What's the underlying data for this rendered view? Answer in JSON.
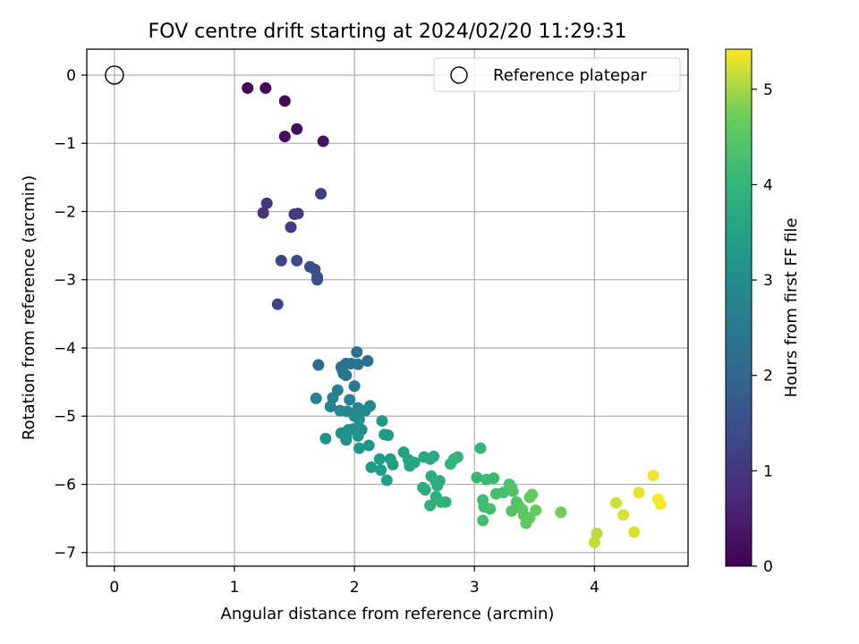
{
  "chart_data": {
    "type": "scatter",
    "title": "FOV centre drift starting at 2024/02/20 11:29:31",
    "xlabel": "Angular distance from reference (arcmin)",
    "ylabel": "Rotation from reference (arcmin)",
    "xlim": [
      -0.23,
      4.78
    ],
    "ylim": [
      -7.2,
      0.38
    ],
    "xticks": [
      0,
      1,
      2,
      3,
      4
    ],
    "yticks": [
      0,
      -1,
      -2,
      -3,
      -4,
      -5,
      -6,
      -7
    ],
    "grid": true,
    "legend": {
      "placement": "top-right",
      "entries": [
        "Reference platepar"
      ]
    },
    "reference_point": {
      "x": 0,
      "y": 0
    },
    "colorbar": {
      "label": "Hours from first FF file",
      "range": [
        0,
        5.42
      ],
      "ticks": [
        0,
        1,
        2,
        3,
        4,
        5
      ],
      "colormap": "viridis"
    },
    "points": [
      {
        "x": 1.11,
        "y": -0.19,
        "t": 0.05
      },
      {
        "x": 1.26,
        "y": -0.19,
        "t": 0.1
      },
      {
        "x": 1.42,
        "y": -0.38,
        "t": 0.15
      },
      {
        "x": 1.42,
        "y": -0.9,
        "t": 0.2
      },
      {
        "x": 1.52,
        "y": -0.79,
        "t": 0.25
      },
      {
        "x": 1.74,
        "y": -0.97,
        "t": 0.3
      },
      {
        "x": 1.24,
        "y": -2.02,
        "t": 0.9
      },
      {
        "x": 1.27,
        "y": -1.88,
        "t": 0.95
      },
      {
        "x": 1.5,
        "y": -2.04,
        "t": 1.0
      },
      {
        "x": 1.53,
        "y": -2.03,
        "t": 1.05
      },
      {
        "x": 1.47,
        "y": -2.23,
        "t": 1.05
      },
      {
        "x": 1.72,
        "y": -1.74,
        "t": 1.1
      },
      {
        "x": 1.39,
        "y": -2.72,
        "t": 1.3
      },
      {
        "x": 1.52,
        "y": -2.72,
        "t": 1.35
      },
      {
        "x": 1.63,
        "y": -2.81,
        "t": 1.4
      },
      {
        "x": 1.67,
        "y": -2.85,
        "t": 1.45
      },
      {
        "x": 1.69,
        "y": -2.96,
        "t": 1.5
      },
      {
        "x": 1.69,
        "y": -3.0,
        "t": 1.5
      },
      {
        "x": 1.36,
        "y": -3.36,
        "t": 1.3
      },
      {
        "x": 1.7,
        "y": -4.25,
        "t": 2.1
      },
      {
        "x": 2.02,
        "y": -4.06,
        "t": 2.2
      },
      {
        "x": 2.11,
        "y": -4.19,
        "t": 2.2
      },
      {
        "x": 1.89,
        "y": -4.28,
        "t": 2.3
      },
      {
        "x": 1.93,
        "y": -4.23,
        "t": 2.3
      },
      {
        "x": 1.97,
        "y": -4.23,
        "t": 2.3
      },
      {
        "x": 2.03,
        "y": -4.24,
        "t": 2.35
      },
      {
        "x": 1.9,
        "y": -4.33,
        "t": 2.35
      },
      {
        "x": 1.91,
        "y": -4.38,
        "t": 2.4
      },
      {
        "x": 1.93,
        "y": -4.4,
        "t": 2.4
      },
      {
        "x": 2.0,
        "y": -4.56,
        "t": 2.5
      },
      {
        "x": 1.86,
        "y": -4.62,
        "t": 2.6
      },
      {
        "x": 1.82,
        "y": -4.73,
        "t": 2.6
      },
      {
        "x": 1.68,
        "y": -4.74,
        "t": 2.65
      },
      {
        "x": 1.96,
        "y": -4.76,
        "t": 2.7
      },
      {
        "x": 1.8,
        "y": -4.86,
        "t": 2.7
      },
      {
        "x": 2.03,
        "y": -4.88,
        "t": 2.75
      },
      {
        "x": 2.13,
        "y": -4.85,
        "t": 2.8
      },
      {
        "x": 1.88,
        "y": -4.92,
        "t": 2.8
      },
      {
        "x": 1.94,
        "y": -4.93,
        "t": 2.85
      },
      {
        "x": 2.04,
        "y": -4.95,
        "t": 2.9
      },
      {
        "x": 2.09,
        "y": -4.92,
        "t": 2.9
      },
      {
        "x": 2.0,
        "y": -5.0,
        "t": 2.95
      },
      {
        "x": 2.04,
        "y": -5.05,
        "t": 3.0
      },
      {
        "x": 1.95,
        "y": -5.2,
        "t": 3.0
      },
      {
        "x": 1.99,
        "y": -5.19,
        "t": 3.0
      },
      {
        "x": 2.06,
        "y": -5.2,
        "t": 3.05
      },
      {
        "x": 1.89,
        "y": -5.25,
        "t": 3.05
      },
      {
        "x": 1.93,
        "y": -5.3,
        "t": 3.1
      },
      {
        "x": 1.93,
        "y": -5.35,
        "t": 3.1
      },
      {
        "x": 2.03,
        "y": -5.29,
        "t": 3.15
      },
      {
        "x": 1.76,
        "y": -5.33,
        "t": 3.15
      },
      {
        "x": 2.04,
        "y": -5.47,
        "t": 3.2
      },
      {
        "x": 2.12,
        "y": -5.43,
        "t": 3.2
      },
      {
        "x": 2.23,
        "y": -5.07,
        "t": 3.25
      },
      {
        "x": 2.25,
        "y": -5.27,
        "t": 3.3
      },
      {
        "x": 2.28,
        "y": -5.28,
        "t": 3.3
      },
      {
        "x": 2.14,
        "y": -5.75,
        "t": 3.35
      },
      {
        "x": 2.21,
        "y": -5.63,
        "t": 3.35
      },
      {
        "x": 2.22,
        "y": -5.79,
        "t": 3.4
      },
      {
        "x": 2.3,
        "y": -5.63,
        "t": 3.4
      },
      {
        "x": 2.32,
        "y": -5.71,
        "t": 3.45
      },
      {
        "x": 2.27,
        "y": -5.94,
        "t": 3.45
      },
      {
        "x": 2.41,
        "y": -5.53,
        "t": 3.5
      },
      {
        "x": 2.45,
        "y": -5.64,
        "t": 3.55
      },
      {
        "x": 2.46,
        "y": -5.73,
        "t": 3.55
      },
      {
        "x": 2.5,
        "y": -5.68,
        "t": 3.6
      },
      {
        "x": 2.58,
        "y": -5.6,
        "t": 3.65
      },
      {
        "x": 2.63,
        "y": -5.63,
        "t": 3.65
      },
      {
        "x": 2.66,
        "y": -5.59,
        "t": 3.7
      },
      {
        "x": 2.57,
        "y": -6.05,
        "t": 3.7
      },
      {
        "x": 2.59,
        "y": -6.08,
        "t": 3.75
      },
      {
        "x": 2.64,
        "y": -5.88,
        "t": 3.75
      },
      {
        "x": 2.68,
        "y": -5.96,
        "t": 3.8
      },
      {
        "x": 2.71,
        "y": -5.95,
        "t": 3.8
      },
      {
        "x": 2.69,
        "y": -6.02,
        "t": 3.85
      },
      {
        "x": 2.68,
        "y": -6.18,
        "t": 3.85
      },
      {
        "x": 2.63,
        "y": -6.31,
        "t": 3.9
      },
      {
        "x": 2.72,
        "y": -6.26,
        "t": 3.9
      },
      {
        "x": 2.76,
        "y": -6.26,
        "t": 3.95
      },
      {
        "x": 2.8,
        "y": -5.7,
        "t": 3.95
      },
      {
        "x": 2.83,
        "y": -5.63,
        "t": 4.0
      },
      {
        "x": 2.86,
        "y": -5.6,
        "t": 4.0
      },
      {
        "x": 3.05,
        "y": -5.47,
        "t": 4.05
      },
      {
        "x": 3.02,
        "y": -5.9,
        "t": 4.1
      },
      {
        "x": 3.1,
        "y": -5.93,
        "t": 4.15
      },
      {
        "x": 3.16,
        "y": -5.91,
        "t": 4.15
      },
      {
        "x": 3.07,
        "y": -6.23,
        "t": 4.2
      },
      {
        "x": 3.08,
        "y": -6.33,
        "t": 4.2
      },
      {
        "x": 3.13,
        "y": -6.36,
        "t": 4.25
      },
      {
        "x": 3.07,
        "y": -6.53,
        "t": 4.25
      },
      {
        "x": 3.18,
        "y": -6.14,
        "t": 4.3
      },
      {
        "x": 3.24,
        "y": -6.12,
        "t": 4.3
      },
      {
        "x": 3.29,
        "y": -6.0,
        "t": 4.35
      },
      {
        "x": 3.31,
        "y": -6.05,
        "t": 4.35
      },
      {
        "x": 3.32,
        "y": -6.1,
        "t": 4.4
      },
      {
        "x": 3.35,
        "y": -6.26,
        "t": 4.4
      },
      {
        "x": 3.31,
        "y": -6.39,
        "t": 4.45
      },
      {
        "x": 3.37,
        "y": -6.32,
        "t": 4.45
      },
      {
        "x": 3.4,
        "y": -6.37,
        "t": 4.5
      },
      {
        "x": 3.41,
        "y": -6.45,
        "t": 4.5
      },
      {
        "x": 3.43,
        "y": -6.57,
        "t": 4.55
      },
      {
        "x": 3.46,
        "y": -6.49,
        "t": 4.55
      },
      {
        "x": 3.46,
        "y": -6.19,
        "t": 4.6
      },
      {
        "x": 3.48,
        "y": -6.15,
        "t": 4.6
      },
      {
        "x": 3.51,
        "y": -6.38,
        "t": 4.65
      },
      {
        "x": 3.72,
        "y": -6.41,
        "t": 4.75
      },
      {
        "x": 4.02,
        "y": -6.72,
        "t": 5.1
      },
      {
        "x": 4.0,
        "y": -6.85,
        "t": 5.15
      },
      {
        "x": 4.18,
        "y": -6.27,
        "t": 5.2
      },
      {
        "x": 4.24,
        "y": -6.45,
        "t": 5.25
      },
      {
        "x": 4.33,
        "y": -6.7,
        "t": 5.25
      },
      {
        "x": 4.37,
        "y": -6.12,
        "t": 5.3
      },
      {
        "x": 4.49,
        "y": -5.87,
        "t": 5.35
      },
      {
        "x": 4.53,
        "y": -6.22,
        "t": 5.4
      },
      {
        "x": 4.55,
        "y": -6.29,
        "t": 5.4
      }
    ]
  }
}
